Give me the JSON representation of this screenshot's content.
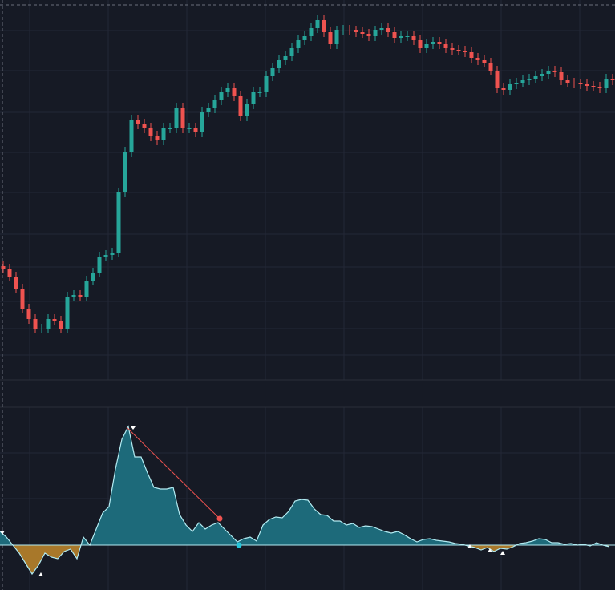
{
  "chart_data": [
    {
      "type": "candlestick",
      "up_color": "#26a69a",
      "down_color": "#ef5350",
      "ylim": [
        0,
        472
      ],
      "open": [
        140,
        137,
        127,
        112,
        87,
        74,
        62,
        62,
        74,
        72,
        62,
        102,
        104,
        102,
        122,
        132,
        152,
        154,
        157,
        232,
        282,
        322,
        317,
        312,
        302,
        297,
        312,
        312,
        337,
        312,
        312,
        307,
        332,
        337,
        347,
        357,
        362,
        352,
        327,
        342,
        357,
        357,
        377,
        387,
        397,
        402,
        412,
        422,
        427,
        437,
        447,
        432,
        417,
        434,
        435,
        434,
        432,
        430,
        427,
        434,
        437,
        432,
        424,
        427,
        427,
        422,
        412,
        417,
        420,
        417,
        412,
        410,
        409,
        407,
        400,
        397,
        394,
        384,
        362,
        360,
        367,
        369,
        372,
        374,
        377,
        380,
        384,
        382,
        372,
        369,
        368,
        367,
        365,
        364,
        362,
        374
      ],
      "high": [
        146,
        143,
        133,
        118,
        93,
        80,
        68,
        80,
        80,
        78,
        108,
        110,
        110,
        128,
        138,
        158,
        160,
        163,
        238,
        288,
        328,
        328,
        323,
        318,
        308,
        318,
        318,
        343,
        343,
        318,
        318,
        338,
        343,
        353,
        363,
        368,
        368,
        358,
        348,
        363,
        363,
        383,
        393,
        403,
        408,
        418,
        428,
        433,
        443,
        453,
        453,
        438,
        440,
        441,
        441,
        440,
        438,
        436,
        440,
        443,
        443,
        438,
        433,
        433,
        433,
        428,
        423,
        426,
        426,
        423,
        418,
        416,
        415,
        413,
        406,
        403,
        400,
        390,
        368,
        373,
        375,
        378,
        380,
        383,
        386,
        390,
        390,
        388,
        378,
        375,
        374,
        373,
        371,
        370,
        380,
        380
      ],
      "low": [
        131,
        121,
        106,
        81,
        68,
        56,
        56,
        56,
        66,
        56,
        56,
        96,
        96,
        96,
        116,
        126,
        146,
        148,
        151,
        226,
        276,
        311,
        306,
        296,
        291,
        291,
        306,
        306,
        306,
        306,
        301,
        301,
        326,
        331,
        341,
        351,
        346,
        321,
        321,
        336,
        351,
        351,
        371,
        381,
        391,
        396,
        406,
        416,
        421,
        431,
        426,
        411,
        411,
        428,
        428,
        426,
        424,
        421,
        421,
        428,
        426,
        418,
        418,
        421,
        416,
        406,
        406,
        411,
        411,
        406,
        404,
        403,
        401,
        394,
        391,
        388,
        378,
        356,
        354,
        354,
        361,
        363,
        366,
        368,
        371,
        374,
        376,
        366,
        363,
        362,
        361,
        359,
        358,
        356,
        356,
        366
      ],
      "close": [
        137,
        127,
        112,
        87,
        74,
        62,
        62,
        74,
        72,
        62,
        102,
        104,
        102,
        122,
        132,
        152,
        154,
        157,
        232,
        282,
        322,
        317,
        312,
        302,
        297,
        312,
        312,
        337,
        312,
        312,
        307,
        332,
        337,
        347,
        357,
        362,
        352,
        327,
        342,
        357,
        357,
        377,
        387,
        397,
        402,
        412,
        422,
        427,
        437,
        447,
        432,
        417,
        434,
        435,
        434,
        432,
        430,
        427,
        434,
        437,
        432,
        424,
        427,
        427,
        422,
        412,
        417,
        420,
        417,
        412,
        410,
        409,
        407,
        400,
        397,
        394,
        384,
        362,
        360,
        367,
        369,
        372,
        374,
        377,
        380,
        384,
        382,
        372,
        369,
        368,
        367,
        365,
        364,
        362,
        374,
        372
      ]
    },
    {
      "type": "area",
      "ylim": [
        -56,
        172
      ],
      "line_color": "#b2ebf2",
      "positive_color": "#1d6a7a",
      "negative_color": "#a8782a",
      "values": [
        17,
        10,
        0,
        -10,
        -23,
        -36,
        -25,
        -10,
        -15,
        -17,
        -8,
        -5,
        -17,
        10,
        0,
        20,
        40,
        48,
        95,
        132,
        148,
        110,
        110,
        90,
        72,
        70,
        70,
        72,
        38,
        25,
        17,
        28,
        20,
        25,
        28,
        20,
        12,
        4,
        8,
        10,
        5,
        25,
        32,
        35,
        34,
        42,
        55,
        57,
        56,
        45,
        38,
        37,
        30,
        30,
        25,
        27,
        22,
        24,
        23,
        20,
        17,
        15,
        17,
        13,
        8,
        4,
        7,
        8,
        6,
        5,
        4,
        2,
        1,
        -1,
        -3,
        -6,
        -3,
        -8,
        -4,
        -5,
        -2,
        2,
        3,
        5,
        8,
        7,
        3,
        3,
        1,
        2,
        0,
        1,
        -1,
        3,
        0,
        -2
      ]
    }
  ]
}
